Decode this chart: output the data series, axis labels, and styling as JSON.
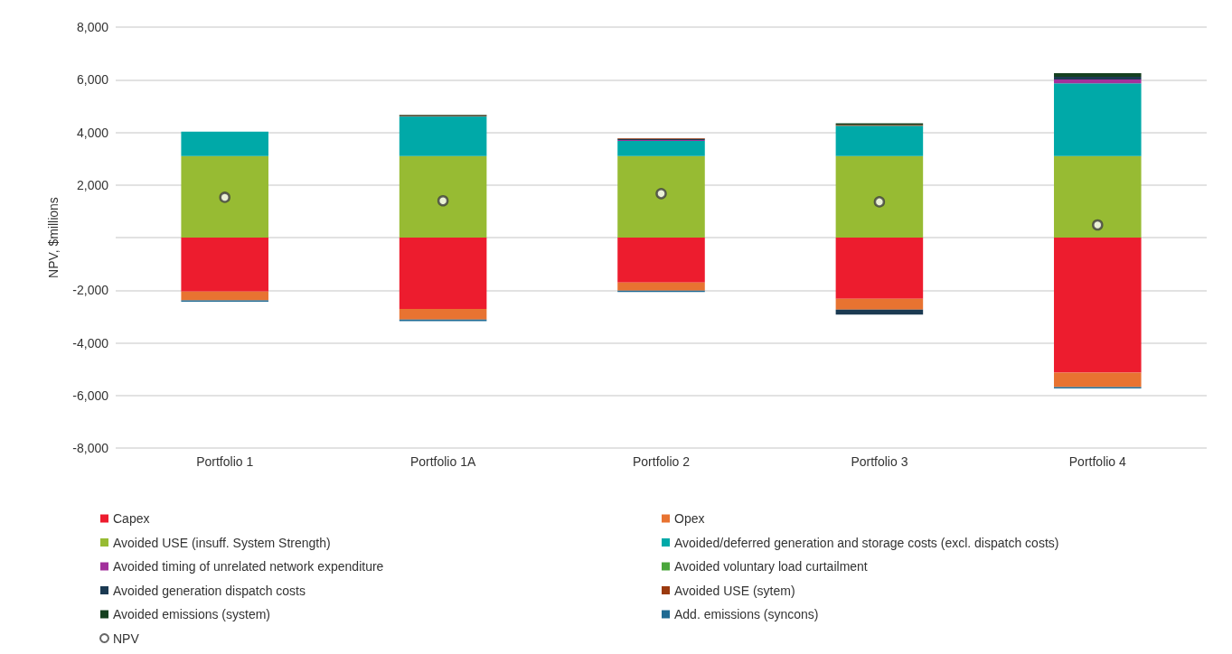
{
  "chart_data": {
    "type": "bar",
    "stacked": true,
    "ylabel": "NPV, $millions",
    "categories": [
      "Portfolio 1",
      "Portfolio 1A",
      "Portfolio 2",
      "Portfolio 3",
      "Portfolio 4"
    ],
    "ylim": [
      -8000,
      8000
    ],
    "yticks": [
      {
        "value": -8000,
        "label": "-8,000"
      },
      {
        "value": -6000,
        "label": "-6,000"
      },
      {
        "value": -4000,
        "label": "-4,000"
      },
      {
        "value": -2000,
        "label": "-2,000"
      },
      {
        "value": 0,
        "label": null
      },
      {
        "value": 2000,
        "label": "2,000"
      },
      {
        "value": 4000,
        "label": "4,000"
      },
      {
        "value": 6000,
        "label": "6,000"
      },
      {
        "value": 8000,
        "label": "8,000"
      }
    ],
    "grid": "y",
    "legend": "bottom",
    "series": [
      {
        "name": "Capex",
        "color": "#ed1c2e",
        "values": [
          -2050,
          -2710,
          -1710,
          -2330,
          -5130
        ]
      },
      {
        "name": "Opex",
        "color": "#e87331",
        "values": [
          -340,
          -410,
          -305,
          -410,
          -550
        ]
      },
      {
        "name": "Avoided USE (insuff. System Strength)",
        "color": "#97bb33",
        "values": [
          3100,
          3100,
          3100,
          3100,
          3100
        ]
      },
      {
        "name": "Avoided/deferred generation and storage costs (excl. dispatch costs)",
        "color": "#00a9a8",
        "values": [
          930,
          1500,
          570,
          1150,
          2760
        ]
      },
      {
        "name": "Avoided timing of unrelated network expenditure",
        "color": "#a2309b",
        "values": [
          0,
          0,
          40,
          0,
          150
        ]
      },
      {
        "name": "Avoided voluntary load curtailment",
        "color": "#4aa63b",
        "values": [
          0,
          0,
          0,
          0,
          0
        ]
      },
      {
        "name": "Avoided generation dispatch costs",
        "color": "#1b3a52",
        "values": [
          0,
          20,
          40,
          -190,
          100
        ]
      },
      {
        "name": "Avoided USE (sytem)",
        "color": "#9b3a0f",
        "values": [
          0,
          20,
          30,
          30,
          0
        ]
      },
      {
        "name": "Avoided emissions (system)",
        "color": "#15401f",
        "values": [
          0,
          30,
          0,
          60,
          140
        ]
      },
      {
        "name": "Add. emissions (syncons)",
        "color": "#1e6a93",
        "values": [
          -50,
          -60,
          -50,
          0,
          -50
        ]
      },
      {
        "name": "NPV",
        "type": "scatter",
        "marker": "circle",
        "color": "#ffffff",
        "values": [
          1530,
          1400,
          1670,
          1360,
          480
        ]
      }
    ]
  }
}
